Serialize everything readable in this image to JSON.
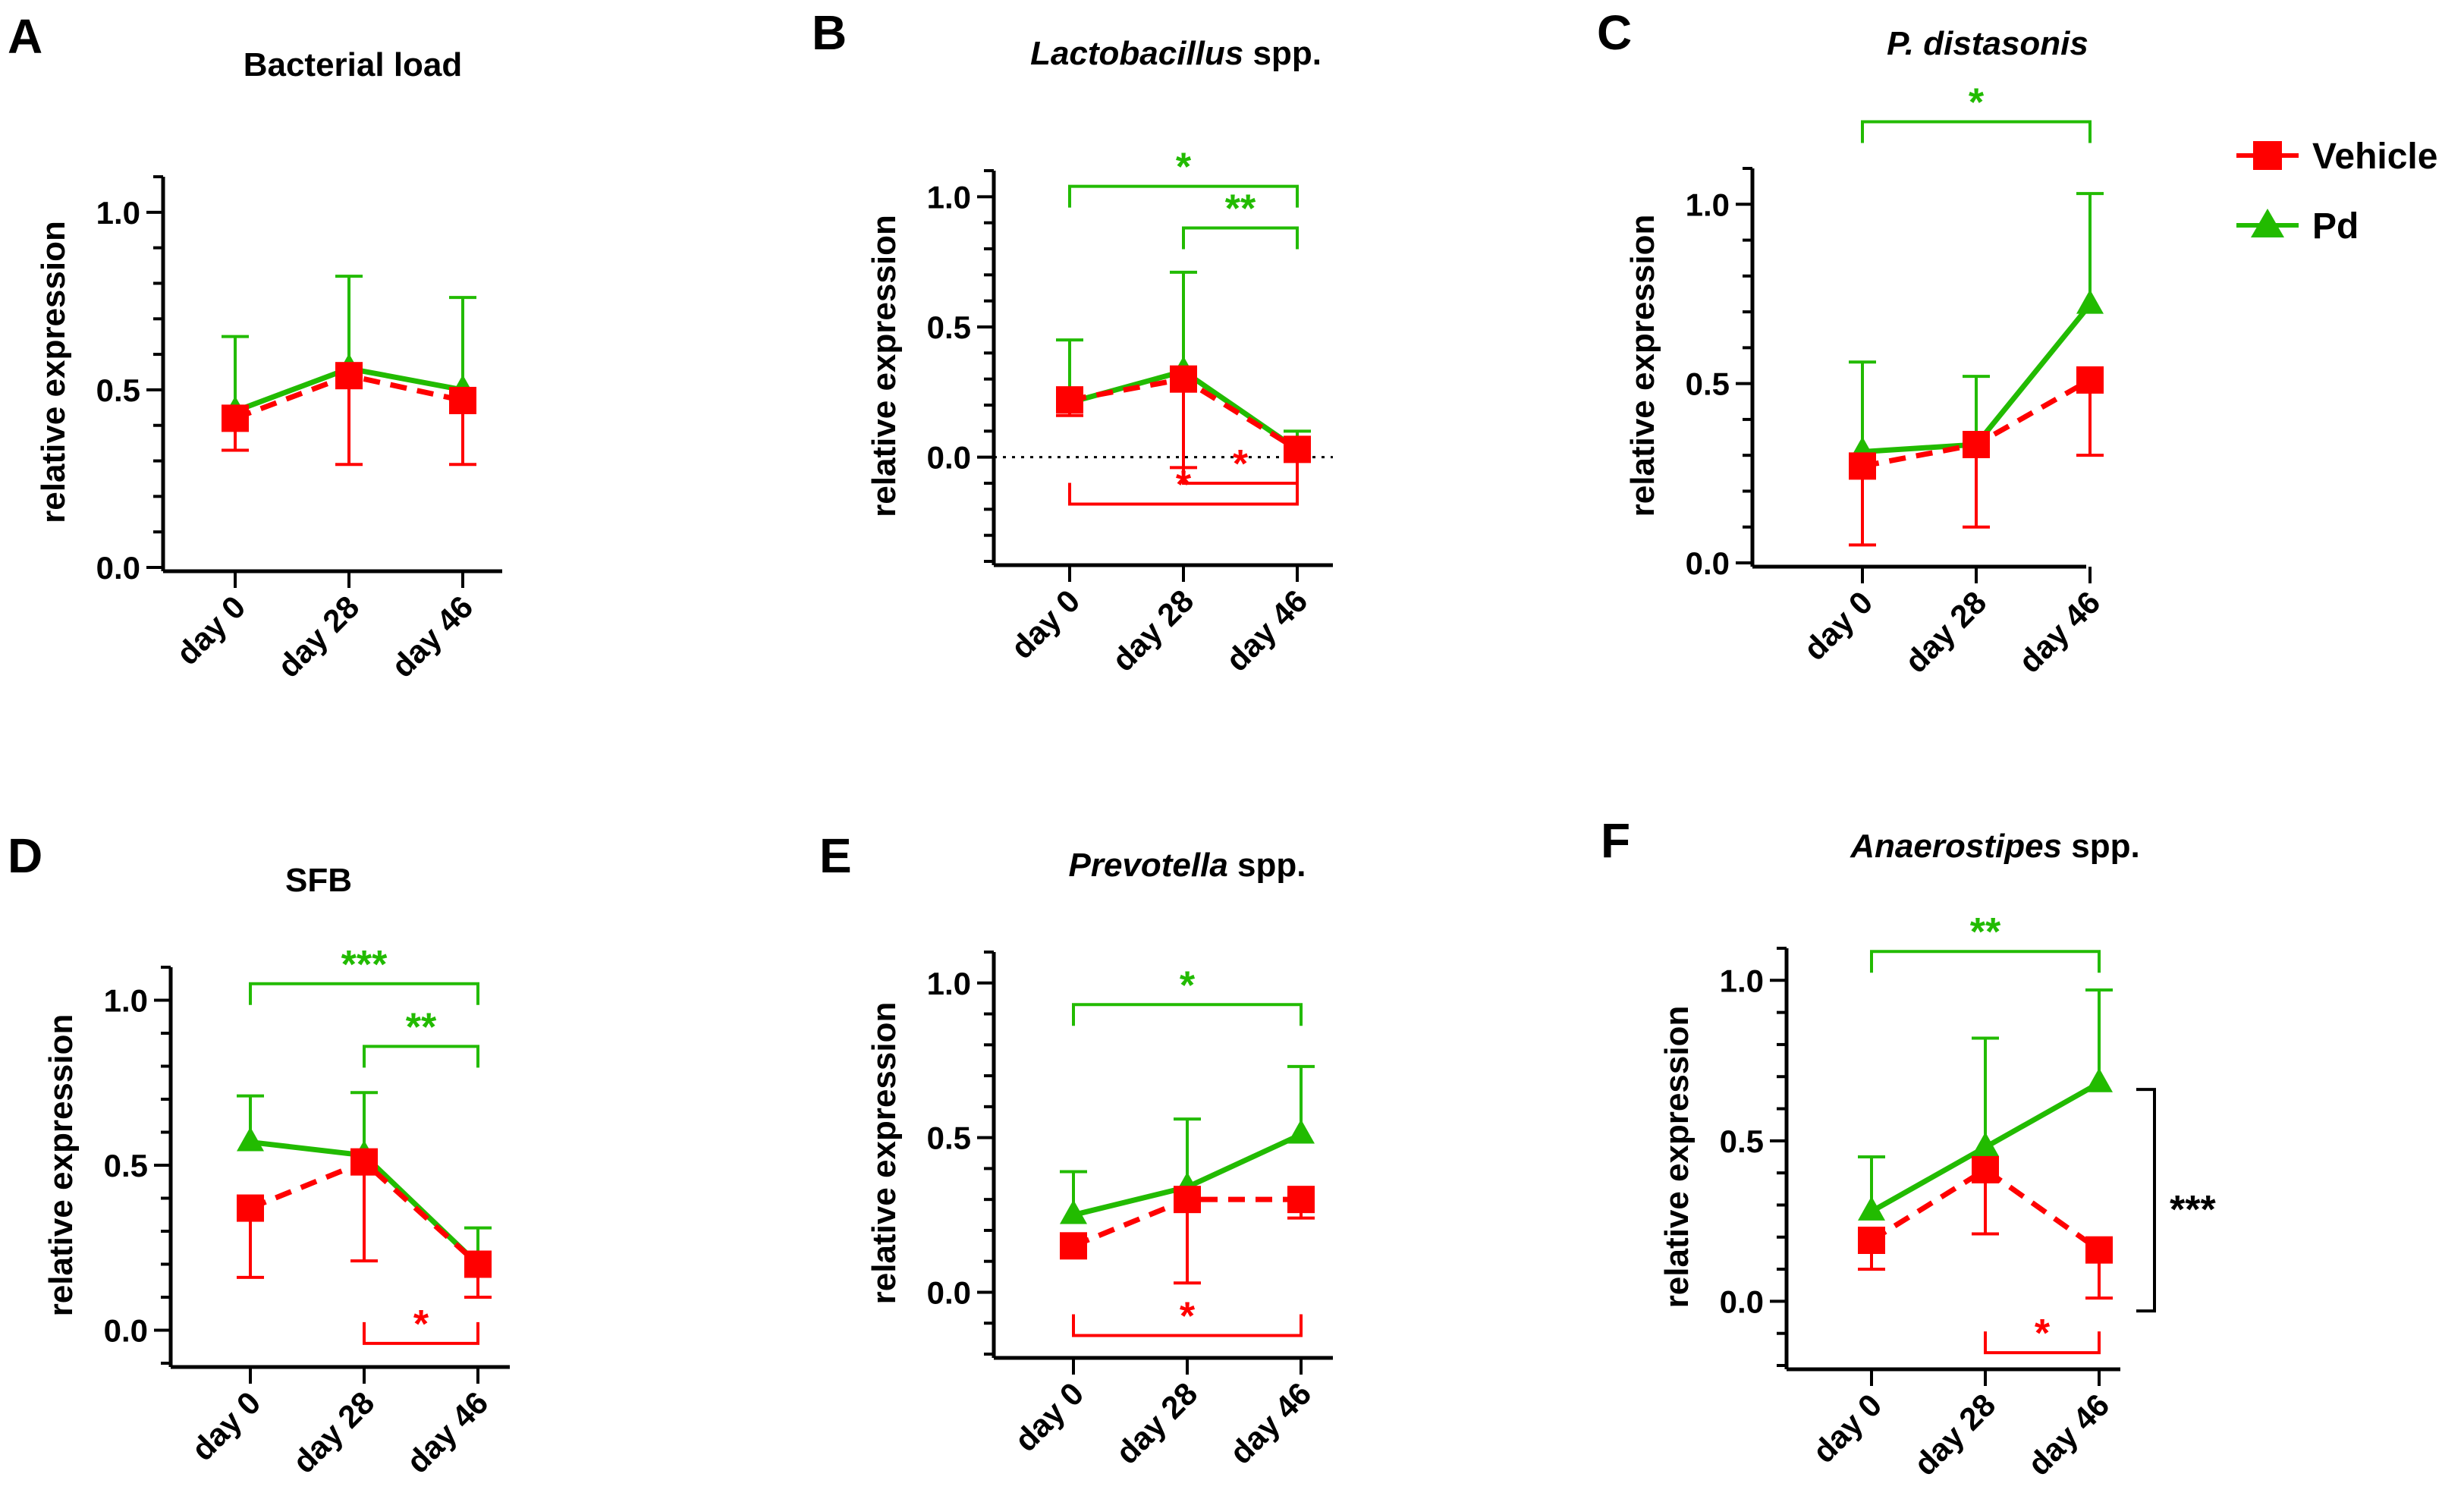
{
  "legend": [
    {
      "name": "Vehicle",
      "color": "#ff0000",
      "marker": "square"
    },
    {
      "name": "Pd",
      "color": "#22bb00",
      "marker": "triangle"
    }
  ],
  "colors": {
    "vehicle": "#ff0000",
    "pd": "#22bb00",
    "axis": "#000000"
  },
  "chart_data": [
    {
      "panel": "A",
      "type": "line",
      "title": "Bacterial load",
      "title_italic": "",
      "title_normal": "Bacterial load",
      "ylabel": "relative expression",
      "categories": [
        "day 0",
        "day 28",
        "day 46"
      ],
      "ylim": [
        0,
        1.1
      ],
      "yticks": [
        0.0,
        0.5,
        1.0
      ],
      "ytick_labels": [
        "0.0",
        "0.5",
        "1.0"
      ],
      "zero_line": false,
      "series": [
        {
          "name": "Pd",
          "values": [
            0.44,
            0.56,
            0.5
          ],
          "err_up": [
            0.65,
            0.82,
            0.76
          ],
          "err_down": [
            null,
            null,
            null
          ]
        },
        {
          "name": "Vehicle",
          "values": [
            0.42,
            0.54,
            0.47
          ],
          "err_up": [
            null,
            null,
            null
          ],
          "err_down": [
            0.33,
            0.29,
            0.29
          ]
        }
      ],
      "brackets": []
    },
    {
      "panel": "B",
      "type": "line",
      "title": "Lactobacillus spp.",
      "title_italic": "Lactobacillus",
      "title_normal": " spp.",
      "ylabel": "relative expression",
      "categories": [
        "day 0",
        "day 28",
        "day 46"
      ],
      "ylim": [
        -0.4,
        1.1
      ],
      "yticks": [
        0.0,
        0.5,
        1.0
      ],
      "ytick_labels": [
        "0.0",
        "0.5",
        "1.0"
      ],
      "zero_line": true,
      "series": [
        {
          "name": "Pd",
          "values": [
            0.21,
            0.33,
            0.03
          ],
          "err_up": [
            0.45,
            0.71,
            0.1
          ],
          "err_down": [
            null,
            null,
            null
          ]
        },
        {
          "name": "Vehicle",
          "values": [
            0.22,
            0.3,
            0.03
          ],
          "err_up": [
            null,
            null,
            null
          ],
          "err_down": [
            0.16,
            -0.04,
            0.02
          ]
        }
      ],
      "brackets": [
        {
          "from": 0,
          "to": 2,
          "y": 1.04,
          "label": "*",
          "series": "Pd",
          "dir": "down"
        },
        {
          "from": 1,
          "to": 2,
          "y": 0.88,
          "label": "**",
          "series": "Pd",
          "dir": "down"
        },
        {
          "from": 1,
          "to": 2,
          "y": -0.1,
          "label": "*",
          "series": "Vehicle",
          "dir": "up"
        },
        {
          "from": 0,
          "to": 2,
          "y": -0.18,
          "label": "*",
          "series": "Vehicle",
          "dir": "up"
        }
      ]
    },
    {
      "panel": "C",
      "type": "line",
      "title": "P. distasonis",
      "title_italic": "P. distasonis",
      "title_normal": "",
      "ylabel": "relative expression",
      "categories": [
        "day 0",
        "day 28",
        "day 46"
      ],
      "ylim": [
        0,
        1.1
      ],
      "yticks": [
        0.0,
        0.5,
        1.0
      ],
      "ytick_labels": [
        "0.0",
        "0.5",
        "1.0"
      ],
      "zero_line": false,
      "series": [
        {
          "name": "Pd",
          "values": [
            0.31,
            0.33,
            0.72
          ],
          "err_up": [
            0.56,
            0.52,
            1.03
          ],
          "err_down": [
            null,
            null,
            null
          ]
        },
        {
          "name": "Vehicle",
          "values": [
            0.27,
            0.33,
            0.51
          ],
          "err_up": [
            null,
            null,
            null
          ],
          "err_down": [
            0.05,
            0.1,
            0.3
          ]
        }
      ],
      "brackets": [
        {
          "from": 0,
          "to": 2,
          "y": 1.23,
          "label": "*",
          "series": "Pd",
          "dir": "down"
        }
      ]
    },
    {
      "panel": "D",
      "type": "line",
      "title": "SFB",
      "title_italic": "",
      "title_normal": "SFB",
      "ylabel": "relative expression",
      "categories": [
        "day 0",
        "day 28",
        "day 46"
      ],
      "ylim": [
        -0.1,
        1.1
      ],
      "yticks": [
        0.0,
        0.5,
        1.0
      ],
      "ytick_labels": [
        "0.0",
        "0.5",
        "1.0"
      ],
      "zero_line": false,
      "series": [
        {
          "name": "Pd",
          "values": [
            0.57,
            0.53,
            0.2
          ],
          "err_up": [
            0.71,
            0.72,
            0.31
          ],
          "err_down": [
            null,
            null,
            null
          ]
        },
        {
          "name": "Vehicle",
          "values": [
            0.37,
            0.51,
            0.2
          ],
          "err_up": [
            null,
            null,
            null
          ],
          "err_down": [
            0.16,
            0.21,
            0.1
          ]
        }
      ],
      "brackets": [
        {
          "from": 0,
          "to": 2,
          "y": 1.05,
          "label": "***",
          "series": "Pd",
          "dir": "down"
        },
        {
          "from": 1,
          "to": 2,
          "y": 0.86,
          "label": "**",
          "series": "Pd",
          "dir": "down"
        },
        {
          "from": 1,
          "to": 2,
          "y": -0.04,
          "label": "*",
          "series": "Vehicle",
          "dir": "up"
        }
      ]
    },
    {
      "panel": "E",
      "type": "line",
      "title": "Prevotella spp.",
      "title_italic": "Prevotella",
      "title_normal": " spp.",
      "ylabel": "relative expression",
      "categories": [
        "day 0",
        "day 28",
        "day 46"
      ],
      "ylim": [
        -0.2,
        1.1
      ],
      "yticks": [
        0.0,
        0.5,
        1.0
      ],
      "ytick_labels": [
        "0.0",
        "0.5",
        "1.0"
      ],
      "zero_line": false,
      "series": [
        {
          "name": "Pd",
          "values": [
            0.25,
            0.34,
            0.51
          ],
          "err_up": [
            0.39,
            0.56,
            0.73
          ],
          "err_down": [
            null,
            null,
            null
          ]
        },
        {
          "name": "Vehicle",
          "values": [
            0.15,
            0.3,
            0.3
          ],
          "err_up": [
            null,
            null,
            null
          ],
          "err_down": [
            null,
            0.03,
            0.24
          ]
        }
      ],
      "brackets": [
        {
          "from": 0,
          "to": 2,
          "y": 0.93,
          "label": "*",
          "series": "Pd",
          "dir": "down"
        },
        {
          "from": 0,
          "to": 2,
          "y": -0.14,
          "label": "*",
          "series": "Vehicle",
          "dir": "up"
        }
      ]
    },
    {
      "panel": "F",
      "type": "line",
      "title": "Anaerostipes spp.",
      "title_italic": "Anaerostipes",
      "title_normal": " spp.",
      "ylabel": "relative expression",
      "categories": [
        "day 0",
        "day 28",
        "day 46"
      ],
      "ylim": [
        -0.2,
        1.1
      ],
      "yticks": [
        0.0,
        0.5,
        1.0
      ],
      "ytick_labels": [
        "0.0",
        "0.5",
        "1.0"
      ],
      "zero_line": false,
      "series": [
        {
          "name": "Pd",
          "values": [
            0.28,
            0.48,
            0.68
          ],
          "err_up": [
            0.45,
            0.82,
            0.97
          ],
          "err_down": [
            null,
            null,
            null
          ]
        },
        {
          "name": "Vehicle",
          "values": [
            0.19,
            0.41,
            0.16
          ],
          "err_up": [
            null,
            null,
            null
          ],
          "err_down": [
            0.1,
            0.21,
            0.01
          ]
        }
      ],
      "brackets": [
        {
          "from": 0,
          "to": 2,
          "y": 1.09,
          "label": "**",
          "series": "Pd",
          "dir": "down"
        },
        {
          "from": 1,
          "to": 2,
          "y": -0.16,
          "label": "*",
          "series": "Vehicle",
          "dir": "up"
        }
      ],
      "side_bracket": {
        "y_top": 0.66,
        "y_bottom": -0.03,
        "label": "***"
      }
    }
  ]
}
